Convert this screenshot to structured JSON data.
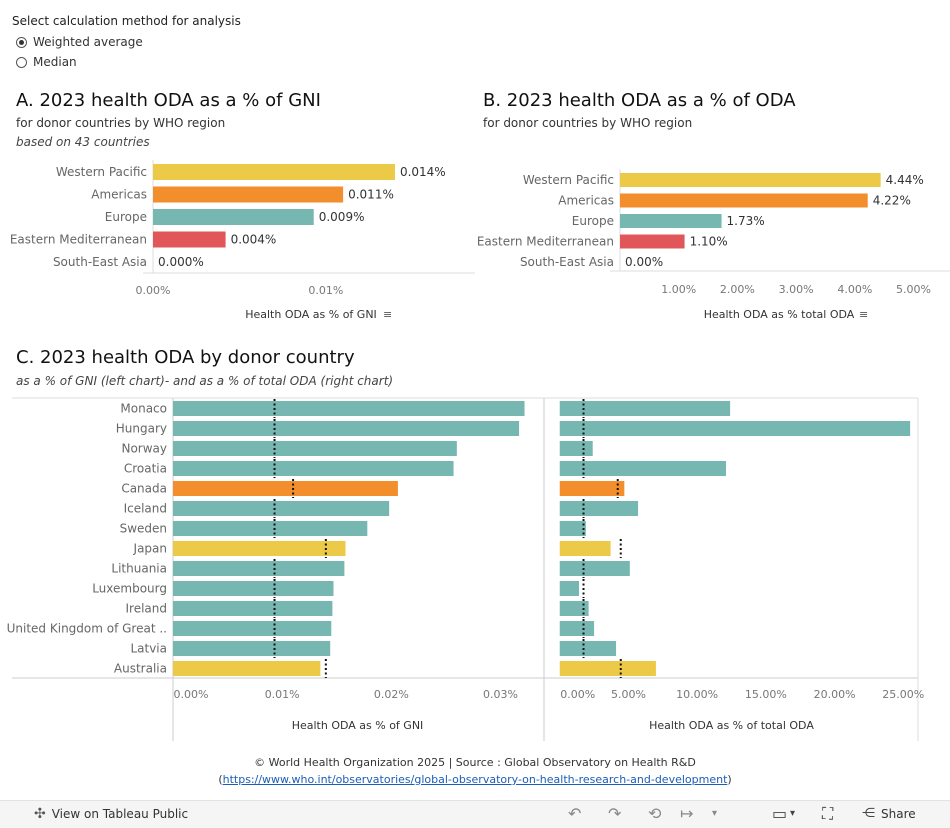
{
  "controls": {
    "select_label": "Select calculation method for analysis",
    "options": [
      "Weighted average",
      "Median"
    ],
    "selected": "Weighted average"
  },
  "panelA": {
    "title": "A. 2023 health ODA as a % of GNI",
    "subtitle": "for donor countries by WHO region",
    "note": "based on  43 countries"
  },
  "panelB": {
    "title": "B. 2023 health ODA as a % of ODA",
    "subtitle": "for donor countries by WHO region"
  },
  "panelC": {
    "title": "C. 2023 health ODA by donor country",
    "subtitle": "as a % of GNI  (left chart)- and as a % of total ODA (right chart)"
  },
  "colors": {
    "western_pacific": "#edc948",
    "americas": "#f28e2b",
    "europe": "#76b7b2",
    "eastern_mediterranean": "#e15759",
    "axis": "#999999",
    "text": "#333333"
  },
  "chart_data": [
    {
      "id": "A",
      "type": "bar",
      "orientation": "horizontal",
      "categories": [
        "Western Pacific",
        "Americas",
        "Europe",
        "Eastern Mediterranean",
        "South-East Asia"
      ],
      "values": [
        0.014,
        0.011,
        0.0093,
        0.0042,
        0.0
      ],
      "labels": [
        "0.014%",
        "0.011%",
        "0.009%",
        "0.004%",
        "0.000%"
      ],
      "color_keys": [
        "western_pacific",
        "americas",
        "europe",
        "eastern_mediterranean",
        "none"
      ],
      "xlabel": "Health ODA as % of GNI",
      "ticks": [
        0.0,
        0.01
      ],
      "tick_labels": [
        "0.00%",
        "0.01%"
      ],
      "xlim": [
        0,
        0.0184
      ]
    },
    {
      "id": "B",
      "type": "bar",
      "orientation": "horizontal",
      "categories": [
        "Western Pacific",
        "Americas",
        "Europe",
        "Eastern Mediterranean",
        "South-East Asia"
      ],
      "values": [
        4.44,
        4.22,
        1.73,
        1.1,
        0.0
      ],
      "labels": [
        "4.44%",
        "4.22%",
        "1.73%",
        "1.10%",
        "0.00%"
      ],
      "color_keys": [
        "western_pacific",
        "americas",
        "europe",
        "eastern_mediterranean",
        "none"
      ],
      "xlabel": "Health ODA as % total ODA",
      "ticks": [
        1,
        2,
        3,
        4,
        5
      ],
      "tick_labels": [
        "1.00%",
        "2.00%",
        "3.00%",
        "4.00%",
        "5.00%"
      ],
      "xlim": [
        0,
        5.4
      ]
    },
    {
      "id": "C-left",
      "type": "bar",
      "orientation": "horizontal",
      "categories": [
        "Monaco",
        "Hungary",
        "Norway",
        "Croatia",
        "Canada",
        "Iceland",
        "Sweden",
        "Japan",
        "Lithuania",
        "Luxembourg",
        "Ireland",
        "United Kingdom of Great ..",
        "Latvia",
        "Australia"
      ],
      "values": [
        0.0322,
        0.0317,
        0.026,
        0.0257,
        0.0206,
        0.0198,
        0.0178,
        0.0158,
        0.0157,
        0.0147,
        0.0146,
        0.0145,
        0.0144,
        0.0135
      ],
      "color_keys": [
        "europe",
        "europe",
        "europe",
        "europe",
        "americas",
        "europe",
        "europe",
        "western_pacific",
        "europe",
        "europe",
        "europe",
        "europe",
        "europe",
        "western_pacific"
      ],
      "reference_values": [
        0.0093,
        0.0093,
        0.0093,
        0.0093,
        0.011,
        0.0093,
        0.0093,
        0.014,
        0.0093,
        0.0093,
        0.0093,
        0.0093,
        0.0093,
        0.014
      ],
      "xlabel": "Health ODA as % of GNI",
      "ticks": [
        0,
        0.01,
        0.02,
        0.03
      ],
      "tick_labels": [
        "0.00%",
        "0.01%",
        "0.02%",
        "0.03%"
      ],
      "xlim": [
        0,
        0.0338
      ]
    },
    {
      "id": "C-right",
      "type": "bar",
      "orientation": "horizontal",
      "categories": [
        "Monaco",
        "Hungary",
        "Norway",
        "Croatia",
        "Canada",
        "Iceland",
        "Sweden",
        "Japan",
        "Lithuania",
        "Luxembourg",
        "Ireland",
        "United Kingdom of Great ..",
        "Latvia",
        "Australia"
      ],
      "values": [
        12.4,
        25.5,
        2.4,
        12.1,
        4.7,
        5.7,
        1.9,
        3.7,
        5.1,
        1.4,
        2.1,
        2.5,
        4.1,
        7.0
      ],
      "color_keys": [
        "europe",
        "europe",
        "europe",
        "europe",
        "americas",
        "europe",
        "europe",
        "western_pacific",
        "europe",
        "europe",
        "europe",
        "europe",
        "europe",
        "western_pacific"
      ],
      "reference_values": [
        1.73,
        1.73,
        1.73,
        1.73,
        4.22,
        1.73,
        1.73,
        4.44,
        1.73,
        1.73,
        1.73,
        1.73,
        1.73,
        4.44
      ],
      "xlabel": "Health ODA as % of total ODA",
      "ticks": [
        0,
        5,
        10,
        15,
        20,
        25
      ],
      "tick_labels": [
        "0.00%",
        "5.00%",
        "10.00%",
        "15.00%",
        "20.00%",
        "25.00%"
      ],
      "xlim": [
        -1.0,
        26.0
      ]
    }
  ],
  "footer": {
    "credit": "© World Health Organization 2025 | Source : Global Observatory on Health R&D",
    "open_paren": "(",
    "link": "https://www.who.int/observatories/global-observatory-on-health-research-and-development",
    "close_paren": ")"
  },
  "toolbar": {
    "view_label": "View on Tableau Public",
    "share_label": "Share"
  }
}
